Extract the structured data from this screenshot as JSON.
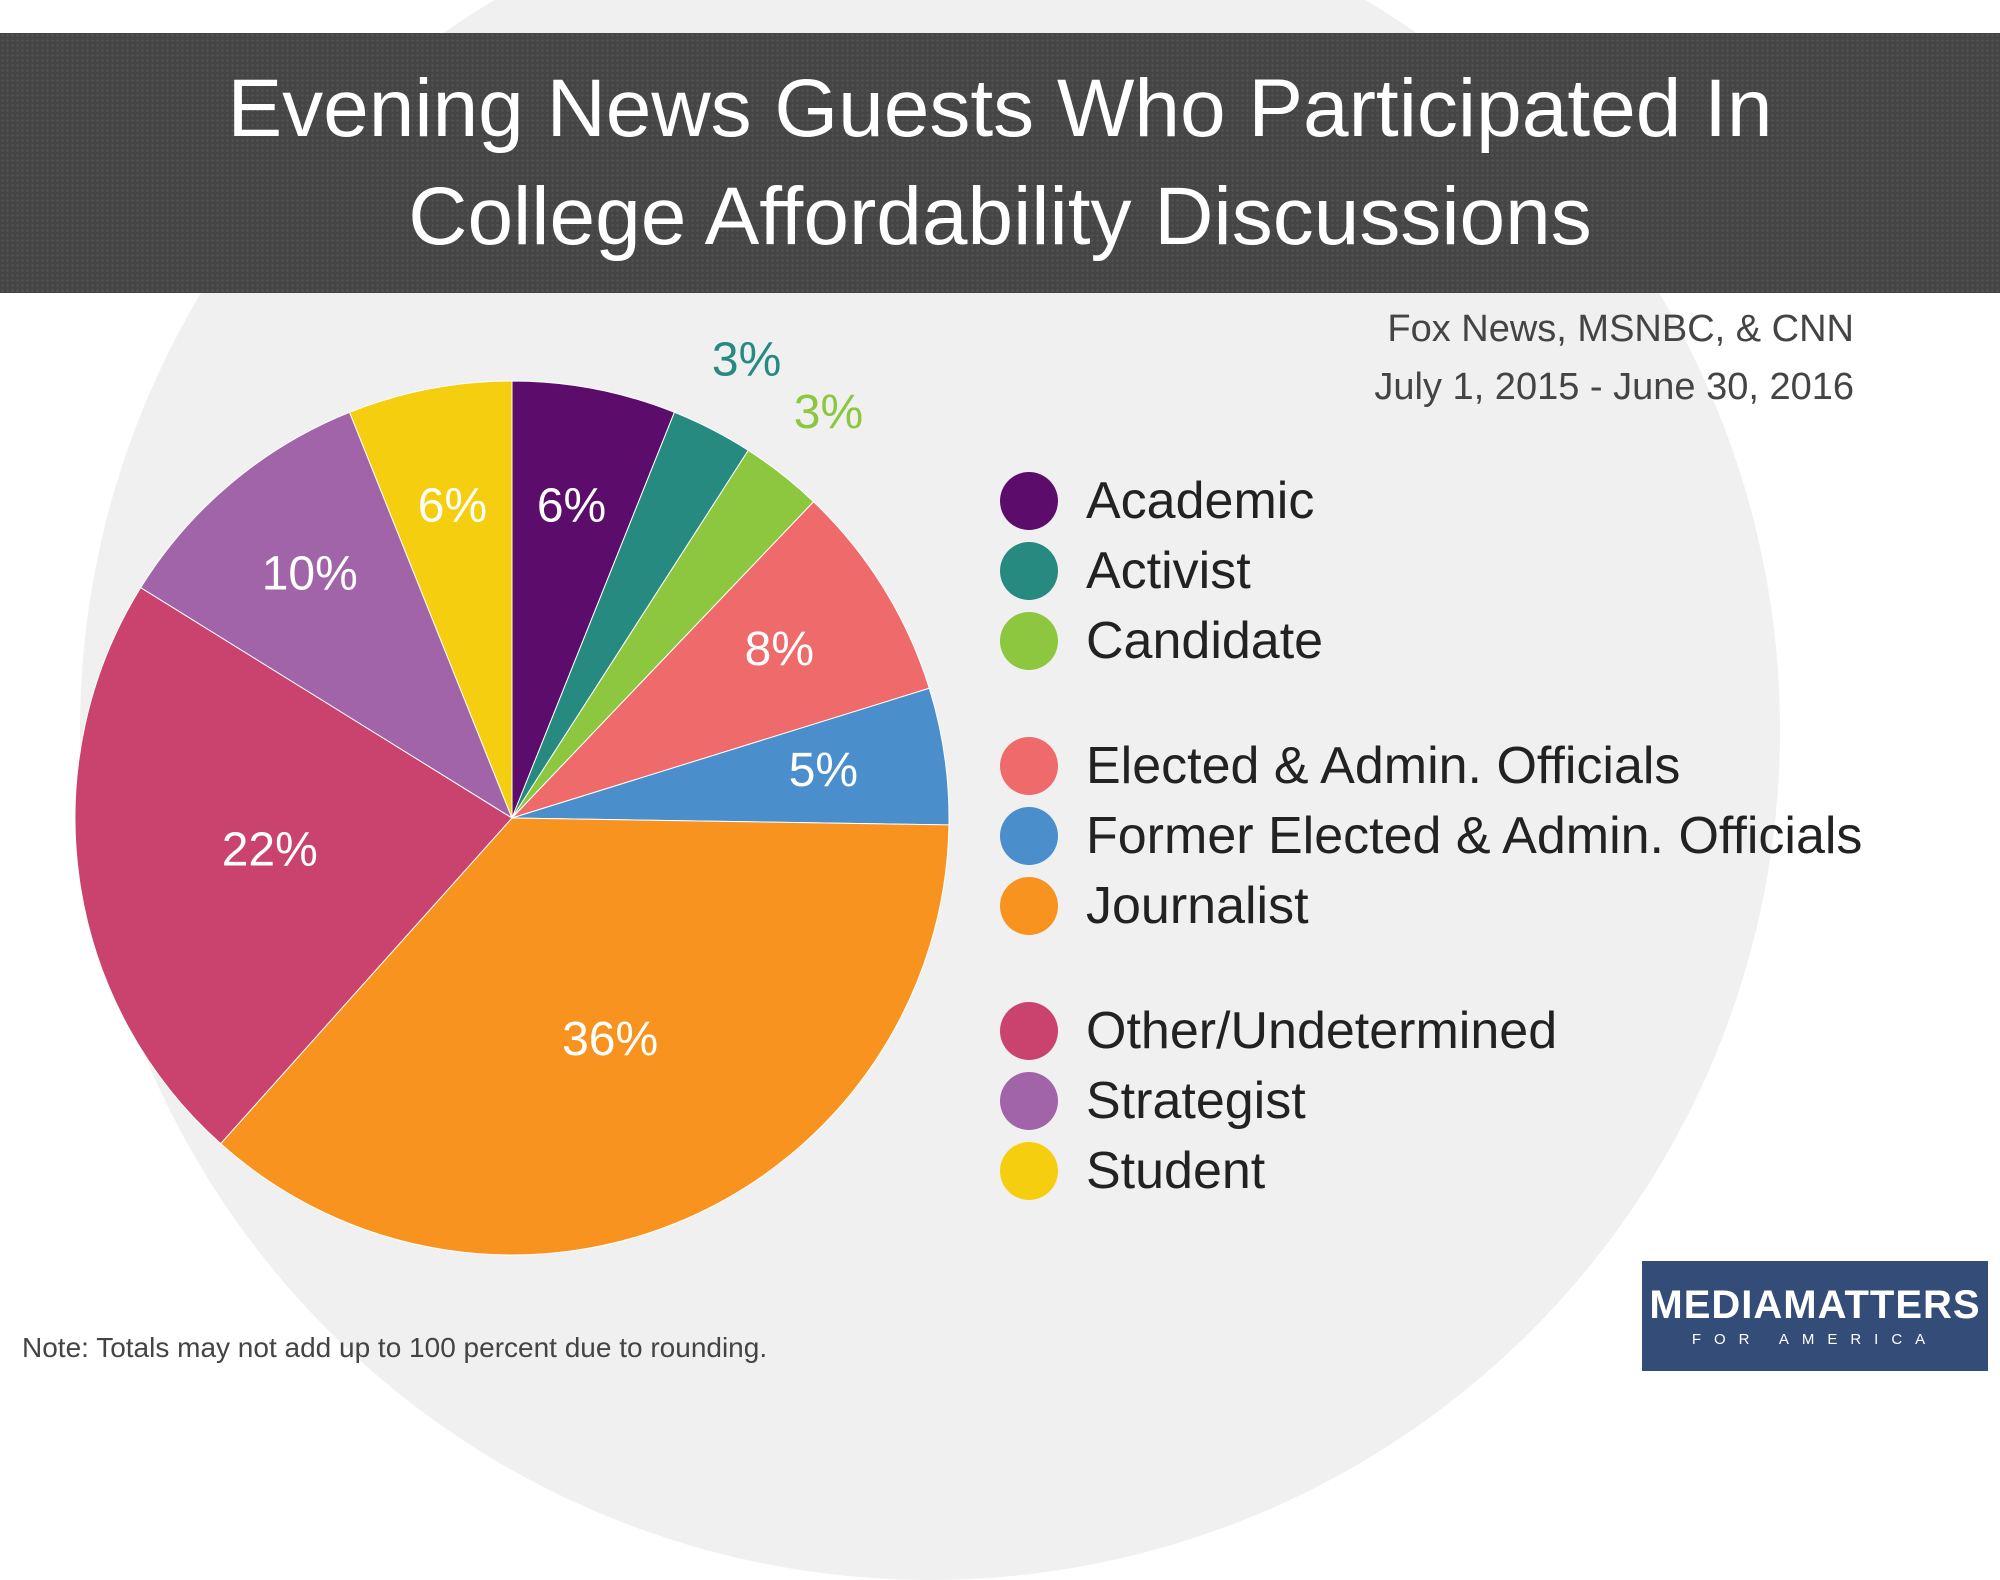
{
  "title": {
    "line1": "Evening News Guests Who Participated In",
    "line2": "College Affordability Discussions"
  },
  "subtitle": {
    "line1": "Fox News, MSNBC, & CNN",
    "line2": "July 1, 2015 - June 30, 2016"
  },
  "note": "Note: Totals may not add up to 100 percent due to rounding.",
  "logo": {
    "main": "MEDIAMATTERS",
    "sub": "FOR AMERICA"
  },
  "chart_data": {
    "type": "pie",
    "slices": [
      {
        "label": "Academic",
        "value": 6,
        "display": "6%",
        "color": "#5c0d6b"
      },
      {
        "label": "Activist",
        "value": 3,
        "display": "3%",
        "color": "#268a80"
      },
      {
        "label": "Candidate",
        "value": 3,
        "display": "3%",
        "color": "#8dc63f"
      },
      {
        "label": "Elected & Admin. Officials",
        "value": 8,
        "display": "8%",
        "color": "#ef6a6a"
      },
      {
        "label": "Former Elected & Admin. Officials",
        "value": 5,
        "display": "5%",
        "color": "#4a8fcc"
      },
      {
        "label": "Journalist",
        "value": 36,
        "display": "36%",
        "color": "#f7931e"
      },
      {
        "label": "Other/Undetermined",
        "value": 22,
        "display": "22%",
        "color": "#c9436e"
      },
      {
        "label": "Strategist",
        "value": 10,
        "display": "10%",
        "color": "#a264a8"
      },
      {
        "label": "Student",
        "value": 6,
        "display": "6%",
        "color": "#f5cf0f"
      }
    ],
    "outside_label_colors": {
      "Activist": "#268a80",
      "Candidate": "#8dc63f"
    },
    "legend_position": "right"
  }
}
